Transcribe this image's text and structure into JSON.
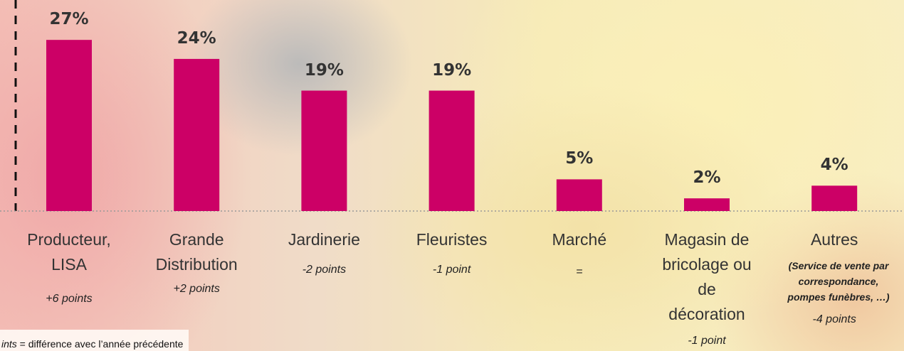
{
  "chart_data": {
    "type": "bar",
    "categories": [
      "Producteur,\nLISA",
      "Grande\nDistribution",
      "Jardinerie",
      "Fleuristes",
      "Marché",
      "Magasin de\nbricolage ou\nde\ndécoration",
      "Autres"
    ],
    "values": [
      27,
      24,
      19,
      19,
      5,
      2,
      4
    ],
    "value_labels": [
      "27%",
      "24%",
      "19%",
      "19%",
      "5%",
      "2%",
      "4%"
    ],
    "changes": [
      "+6 points",
      "+2 points",
      "-2 points",
      "-1 point",
      "=",
      "-1 point",
      "-4 points"
    ],
    "category_note": "(Service de vente par\ncorrespondance,\npompes funèbres, …)",
    "color": "#cc0066",
    "footnote": {
      "term": "ints",
      "text": " = différence avec l’année précédente"
    }
  }
}
